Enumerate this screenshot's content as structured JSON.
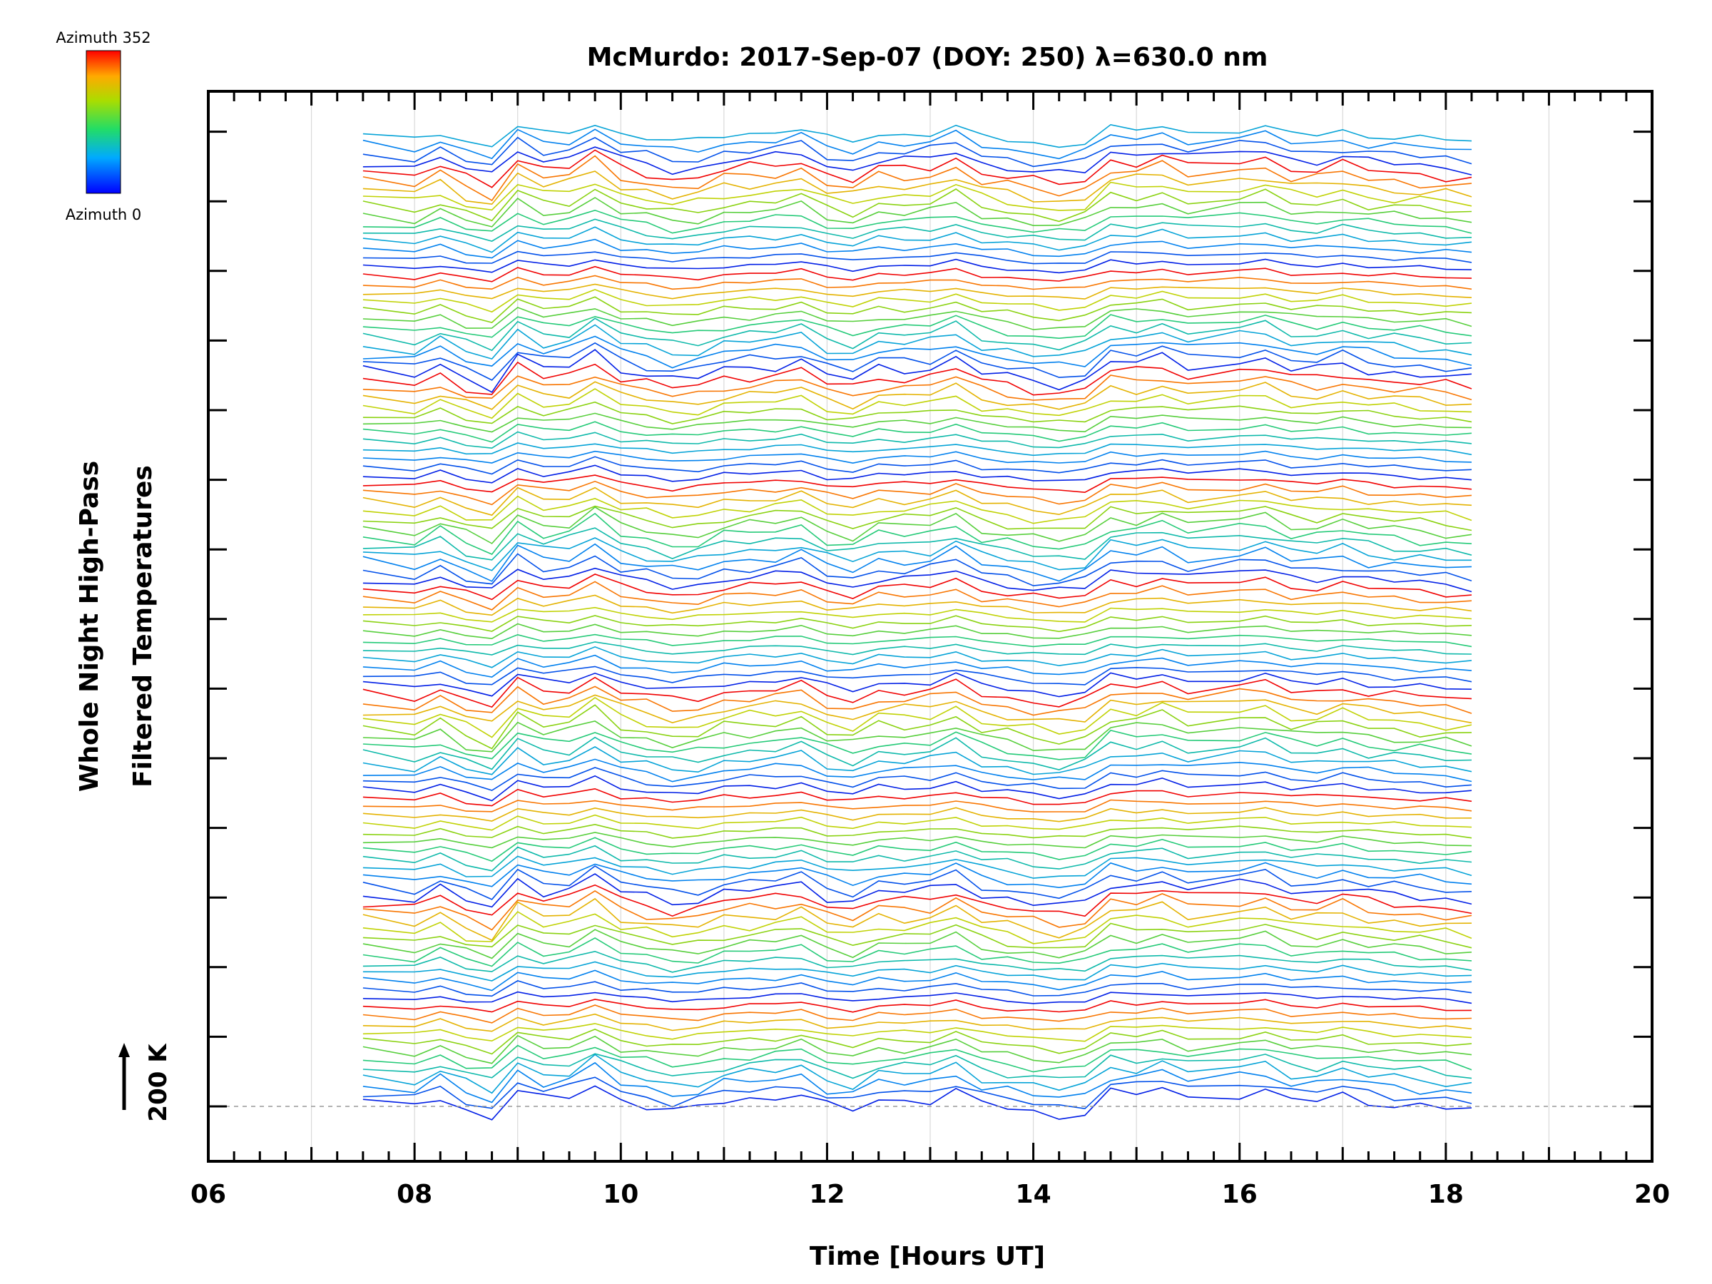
{
  "chart_data": {
    "type": "line",
    "title": "McMurdo: 2017-Sep-07 (DOY: 250) λ=630.0 nm",
    "xlabel": "Time [Hours UT]",
    "ylabel_line1": "Whole Night High-Pass",
    "ylabel_line2": "Filtered Temperatures",
    "xlim": [
      6,
      20
    ],
    "x_ticks": [
      "06",
      "08",
      "10",
      "12",
      "14",
      "16",
      "18",
      "20"
    ],
    "x_tick_values": [
      6,
      8,
      10,
      12,
      14,
      16,
      18,
      20
    ],
    "x_minor_step": 0.25,
    "x_grid_hours": [
      7,
      8,
      9,
      10,
      11,
      12,
      13,
      14,
      15,
      16,
      17,
      18,
      19
    ],
    "data_x_range": [
      7.5,
      18.25
    ],
    "scale_bar_label": "200 K",
    "colorbar": {
      "top_label": "Azimuth  352",
      "bottom_label": "Azimuth  0",
      "min": 0,
      "max": 352
    },
    "stacking": {
      "groups": 6,
      "stack_count": 112,
      "note": "traces offset vertically, baseline dashed at 200 K marker"
    },
    "time_samples": [
      7.5,
      8.0,
      8.25,
      8.5,
      8.75,
      9.0,
      9.25,
      9.5,
      9.75,
      10.0,
      10.25,
      10.5,
      10.75,
      11.0,
      11.25,
      11.5,
      11.75,
      12.0,
      12.25,
      12.5,
      12.75,
      13.0,
      13.25,
      13.5,
      13.75,
      14.0,
      14.25,
      14.5,
      14.75,
      15.0,
      15.25,
      15.5,
      16.0,
      16.25,
      16.5,
      16.75,
      17.0,
      17.25,
      17.5,
      17.75,
      18.0,
      18.25
    ],
    "common_signal": [
      0.0,
      -0.6,
      0.5,
      -0.8,
      -1.6,
      1.4,
      0.2,
      0.4,
      1.8,
      0.2,
      -0.3,
      -0.9,
      -0.7,
      0.1,
      0.3,
      0.5,
      1.0,
      -0.4,
      -0.9,
      0.2,
      0.1,
      0.3,
      1.2,
      -0.2,
      -0.6,
      -1.1,
      -1.4,
      -1.0,
      1.0,
      0.8,
      1.3,
      0.4,
      0.9,
      1.2,
      0.2,
      0.1,
      0.6,
      0.0,
      -0.2,
      -0.4,
      -0.6,
      -0.9
    ],
    "units": "K"
  }
}
